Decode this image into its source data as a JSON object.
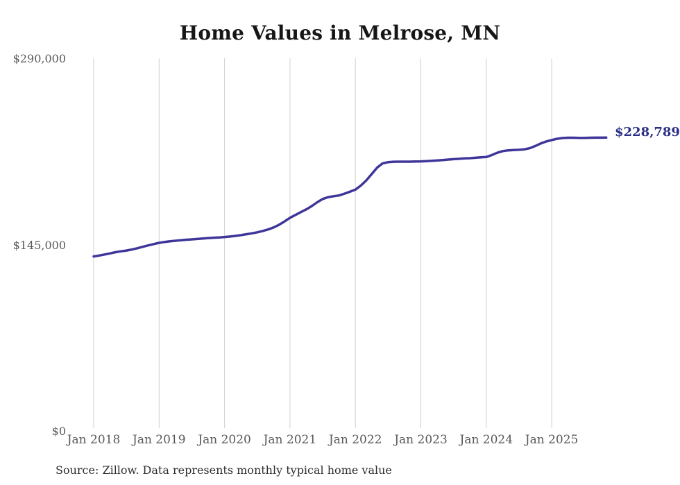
{
  "title": "Home Values in Melrose, MN",
  "source_note": "Source: Zillow. Data represents monthly typical home value",
  "colors": {
    "line": "#3e3699",
    "end_label": "#282e84",
    "axis_text": "#595959",
    "grid": "#cfcfcf",
    "title": "#161616",
    "background": "#ffffff"
  },
  "chart_data": {
    "type": "line",
    "title": "Home Values in Melrose, MN",
    "xlabel": "",
    "ylabel": "",
    "x_frequency": "monthly",
    "x_start": "Jan 2018",
    "x_end": "Nov 2025",
    "x_tick_labels": [
      "Jan 2018",
      "Jan 2019",
      "Jan 2020",
      "Jan 2021",
      "Jan 2022",
      "Jan 2023",
      "Jan 2024",
      "Jan 2025"
    ],
    "y_tick_labels": [
      "$0",
      "$145,000",
      "$290,000"
    ],
    "y_tick_values": [
      0,
      145000,
      290000
    ],
    "ylim": [
      0,
      290000
    ],
    "grid": "vertical-only",
    "legend": "none",
    "last_value": 228789,
    "last_value_label": "$228,789",
    "series": [
      {
        "name": "Typical home value",
        "values": [
          136300,
          137000,
          137800,
          138700,
          139600,
          140300,
          140900,
          141700,
          142700,
          143800,
          144900,
          145900,
          146900,
          147600,
          148100,
          148500,
          148900,
          149300,
          149600,
          149900,
          150300,
          150600,
          150900,
          151100,
          151400,
          151800,
          152300,
          152900,
          153600,
          154300,
          155100,
          156100,
          157300,
          158900,
          161000,
          163500,
          166400,
          168600,
          170800,
          173000,
          175500,
          178500,
          181000,
          182500,
          183200,
          183800,
          185200,
          186700,
          188300,
          191500,
          195500,
          200500,
          205500,
          208800,
          209700,
          210000,
          210100,
          210100,
          210100,
          210200,
          210300,
          210500,
          210700,
          211000,
          211300,
          211700,
          212000,
          212300,
          212600,
          212800,
          213100,
          213400,
          213700,
          215200,
          217000,
          218300,
          218900,
          219100,
          219300,
          219700,
          220600,
          222300,
          224300,
          225800,
          226900,
          227900,
          228500,
          228700,
          228700,
          228600,
          228600,
          228700,
          228750,
          228770,
          228789
        ]
      }
    ]
  }
}
